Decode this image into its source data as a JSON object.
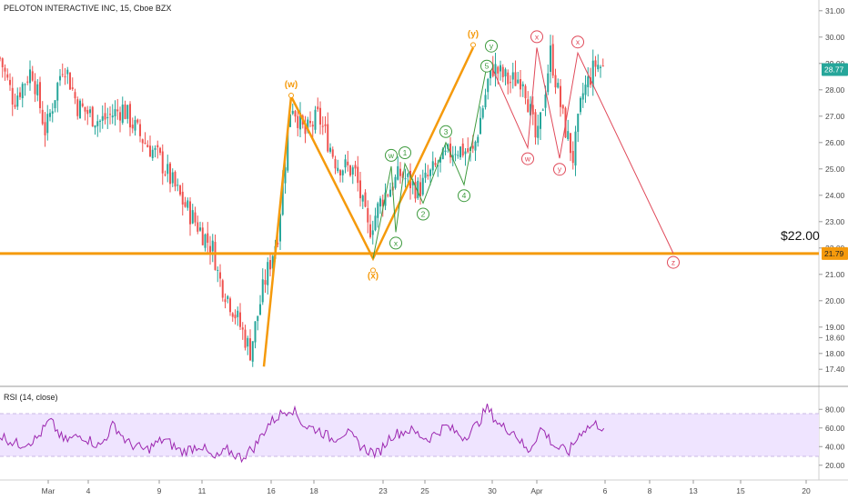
{
  "header": {
    "title": "PELOTON INTERACTIVE INC, 15, Cboe BZX"
  },
  "colors": {
    "up": "#26a69a",
    "down": "#ef5350",
    "orange": "#f59a0c",
    "green": "#3d9a3d",
    "red": "#e04a5a",
    "rsi": "#9c27b0",
    "rsi_band": "#e9dbff"
  },
  "chart_data": [
    {
      "type": "candlestick",
      "title": "PELOTON INTERACTIVE INC, 15, Cboe BZX",
      "ylim": [
        17.2,
        31.2
      ],
      "yticks": [
        "31.00",
        "30.00",
        "29.00",
        "28.00",
        "27.00",
        "26.00",
        "25.00",
        "24.00",
        "23.00",
        "22.00",
        "21.00",
        "20.00",
        "19.00",
        "18.60",
        "18.00",
        "17.40"
      ],
      "xticks": [
        "Mar",
        "4",
        "9",
        "11",
        "16",
        "18",
        "23",
        "25",
        "30",
        "Apr",
        "6",
        "8",
        "13",
        "15",
        "20"
      ],
      "last_price": "28.77",
      "level_price": "21.79",
      "level_label": "$22.00",
      "price_path": [
        {
          "t": 0,
          "p": 29.2
        },
        {
          "t": 3,
          "p": 27.6
        },
        {
          "t": 7,
          "p": 28.8
        },
        {
          "t": 10,
          "p": 26.4
        },
        {
          "t": 14,
          "p": 29.1
        },
        {
          "t": 17,
          "p": 27.4
        },
        {
          "t": 22,
          "p": 26.8
        },
        {
          "t": 27,
          "p": 27.3
        },
        {
          "t": 31,
          "p": 26.2
        },
        {
          "t": 35,
          "p": 25.4
        },
        {
          "t": 40,
          "p": 23.8
        },
        {
          "t": 44,
          "p": 22.7
        },
        {
          "t": 47,
          "p": 21.9
        },
        {
          "t": 48,
          "p": 20.9
        },
        {
          "t": 51,
          "p": 19.8
        },
        {
          "t": 55,
          "p": 18.1
        },
        {
          "t": 58,
          "p": 20.6
        },
        {
          "t": 61,
          "p": 22.5
        },
        {
          "t": 64,
          "p": 27.6
        },
        {
          "t": 67,
          "p": 26.3
        },
        {
          "t": 70,
          "p": 27.0
        },
        {
          "t": 74,
          "p": 25.2
        },
        {
          "t": 78,
          "p": 24.9
        },
        {
          "t": 81,
          "p": 22.6
        },
        {
          "t": 84,
          "p": 23.9
        },
        {
          "t": 88,
          "p": 24.8
        },
        {
          "t": 92,
          "p": 24.2
        },
        {
          "t": 96,
          "p": 25.1
        },
        {
          "t": 100,
          "p": 25.8
        },
        {
          "t": 104,
          "p": 25.6
        },
        {
          "t": 108,
          "p": 28.9
        },
        {
          "t": 112,
          "p": 28.3
        },
        {
          "t": 115,
          "p": 28.5
        },
        {
          "t": 118,
          "p": 25.9
        },
        {
          "t": 121,
          "p": 29.4
        },
        {
          "t": 124,
          "p": 26.7
        },
        {
          "t": 126,
          "p": 25.4
        },
        {
          "t": 128,
          "p": 27.8
        },
        {
          "t": 131,
          "p": 29.0
        },
        {
          "t": 133,
          "p": 28.77
        }
      ],
      "elliott_orange": {
        "points": [
          {
            "t": 58,
            "p": 17.5
          },
          {
            "t": 64,
            "p": 27.75
          },
          {
            "t": 82,
            "p": 21.6
          },
          {
            "t": 104,
            "p": 29.6
          }
        ],
        "labels": [
          "(w)",
          "(x)",
          "(y)"
        ]
      },
      "elliott_green": {
        "points": [
          {
            "t": 82,
            "p": 21.6
          },
          {
            "t": 86,
            "p": 25.1
          },
          {
            "t": 87,
            "p": 22.6
          },
          {
            "t": 89,
            "p": 25.2
          },
          {
            "t": 93,
            "p": 23.7
          },
          {
            "t": 98,
            "p": 26.0
          },
          {
            "t": 102,
            "p": 24.4
          },
          {
            "t": 107,
            "p": 28.9
          }
        ],
        "labels": [
          "w",
          "x",
          "1",
          "2",
          "3",
          "4",
          "5",
          "y"
        ]
      },
      "elliott_red": {
        "points": [
          {
            "t": 108,
            "p": 28.9
          },
          {
            "t": 116,
            "p": 25.8
          },
          {
            "t": 118,
            "p": 29.6
          },
          {
            "t": 123,
            "p": 25.4
          },
          {
            "t": 127,
            "p": 29.4
          },
          {
            "t": 148,
            "p": 21.8
          }
        ],
        "labels": [
          "w",
          "x",
          "y",
          "x",
          "z"
        ]
      }
    },
    {
      "type": "line",
      "title": "RSI (14, close)",
      "ylim": [
        10,
        90
      ],
      "yticks": [
        "80.00",
        "60.00",
        "40.00",
        "20.00"
      ],
      "band": [
        30,
        70
      ],
      "rsi_path": [
        {
          "t": 0,
          "p": 52
        },
        {
          "t": 4,
          "p": 42
        },
        {
          "t": 8,
          "p": 48
        },
        {
          "t": 11,
          "p": 68
        },
        {
          "t": 14,
          "p": 46
        },
        {
          "t": 18,
          "p": 52
        },
        {
          "t": 22,
          "p": 40
        },
        {
          "t": 25,
          "p": 64
        },
        {
          "t": 28,
          "p": 44
        },
        {
          "t": 32,
          "p": 36
        },
        {
          "t": 36,
          "p": 48
        },
        {
          "t": 40,
          "p": 34
        },
        {
          "t": 44,
          "p": 42
        },
        {
          "t": 47,
          "p": 26
        },
        {
          "t": 50,
          "p": 36
        },
        {
          "t": 53,
          "p": 28
        },
        {
          "t": 56,
          "p": 40
        },
        {
          "t": 59,
          "p": 64
        },
        {
          "t": 62,
          "p": 76
        },
        {
          "t": 64,
          "p": 82
        },
        {
          "t": 67,
          "p": 62
        },
        {
          "t": 70,
          "p": 58
        },
        {
          "t": 73,
          "p": 48
        },
        {
          "t": 76,
          "p": 56
        },
        {
          "t": 80,
          "p": 38
        },
        {
          "t": 83,
          "p": 32
        },
        {
          "t": 86,
          "p": 52
        },
        {
          "t": 90,
          "p": 58
        },
        {
          "t": 94,
          "p": 48
        },
        {
          "t": 98,
          "p": 62
        },
        {
          "t": 102,
          "p": 50
        },
        {
          "t": 105,
          "p": 64
        },
        {
          "t": 107,
          "p": 82
        },
        {
          "t": 110,
          "p": 62
        },
        {
          "t": 113,
          "p": 56
        },
        {
          "t": 116,
          "p": 34
        },
        {
          "t": 119,
          "p": 60
        },
        {
          "t": 122,
          "p": 40
        },
        {
          "t": 125,
          "p": 34
        },
        {
          "t": 128,
          "p": 58
        },
        {
          "t": 131,
          "p": 64
        },
        {
          "t": 133,
          "p": 60
        }
      ]
    }
  ]
}
